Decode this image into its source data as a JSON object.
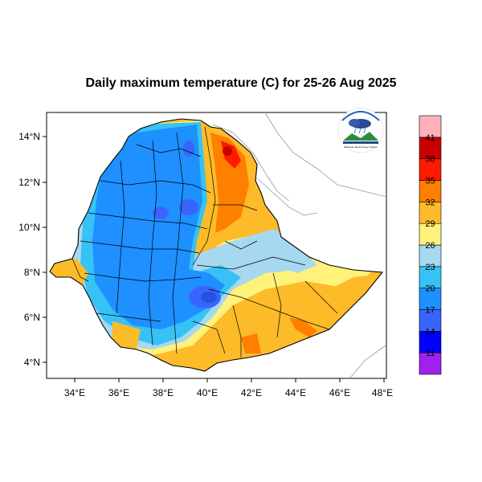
{
  "title": "Daily maximum temperature (C) for 25-26 Aug 2025",
  "axes": {
    "x_ticks": [
      "34°E",
      "36°E",
      "38°E",
      "40°E",
      "42°E",
      "44°E",
      "46°E",
      "48°E"
    ],
    "y_ticks": [
      "14°N",
      "12°N",
      "10°N",
      "8°N",
      "6°N",
      "4°N"
    ]
  },
  "legend": {
    "labels": [
      "11",
      "14",
      "17",
      "20",
      "23",
      "26",
      "29",
      "32",
      "35",
      "38",
      "41"
    ],
    "colors": [
      "#a020f0",
      "#0000ff",
      "#3a64ff",
      "#1e90ff",
      "#37c2f5",
      "#a6d8f0",
      "#fff27a",
      "#fdbb2a",
      "#ff7f00",
      "#ff1a00",
      "#c80000",
      "#ffb0b8"
    ]
  },
  "logo": {
    "text": "Ethiopian Meteorology Institute",
    "name": "emi-logo"
  },
  "colors": {
    "cold_core": "#3a64ff",
    "blue": "#1e90ff",
    "light_blue": "#37c2f5",
    "pale_blue": "#a6d8f0",
    "yellow": "#fff27a",
    "orange": "#fdbb2a",
    "dark_orange": "#ff7f00",
    "red": "#ff1a00"
  }
}
